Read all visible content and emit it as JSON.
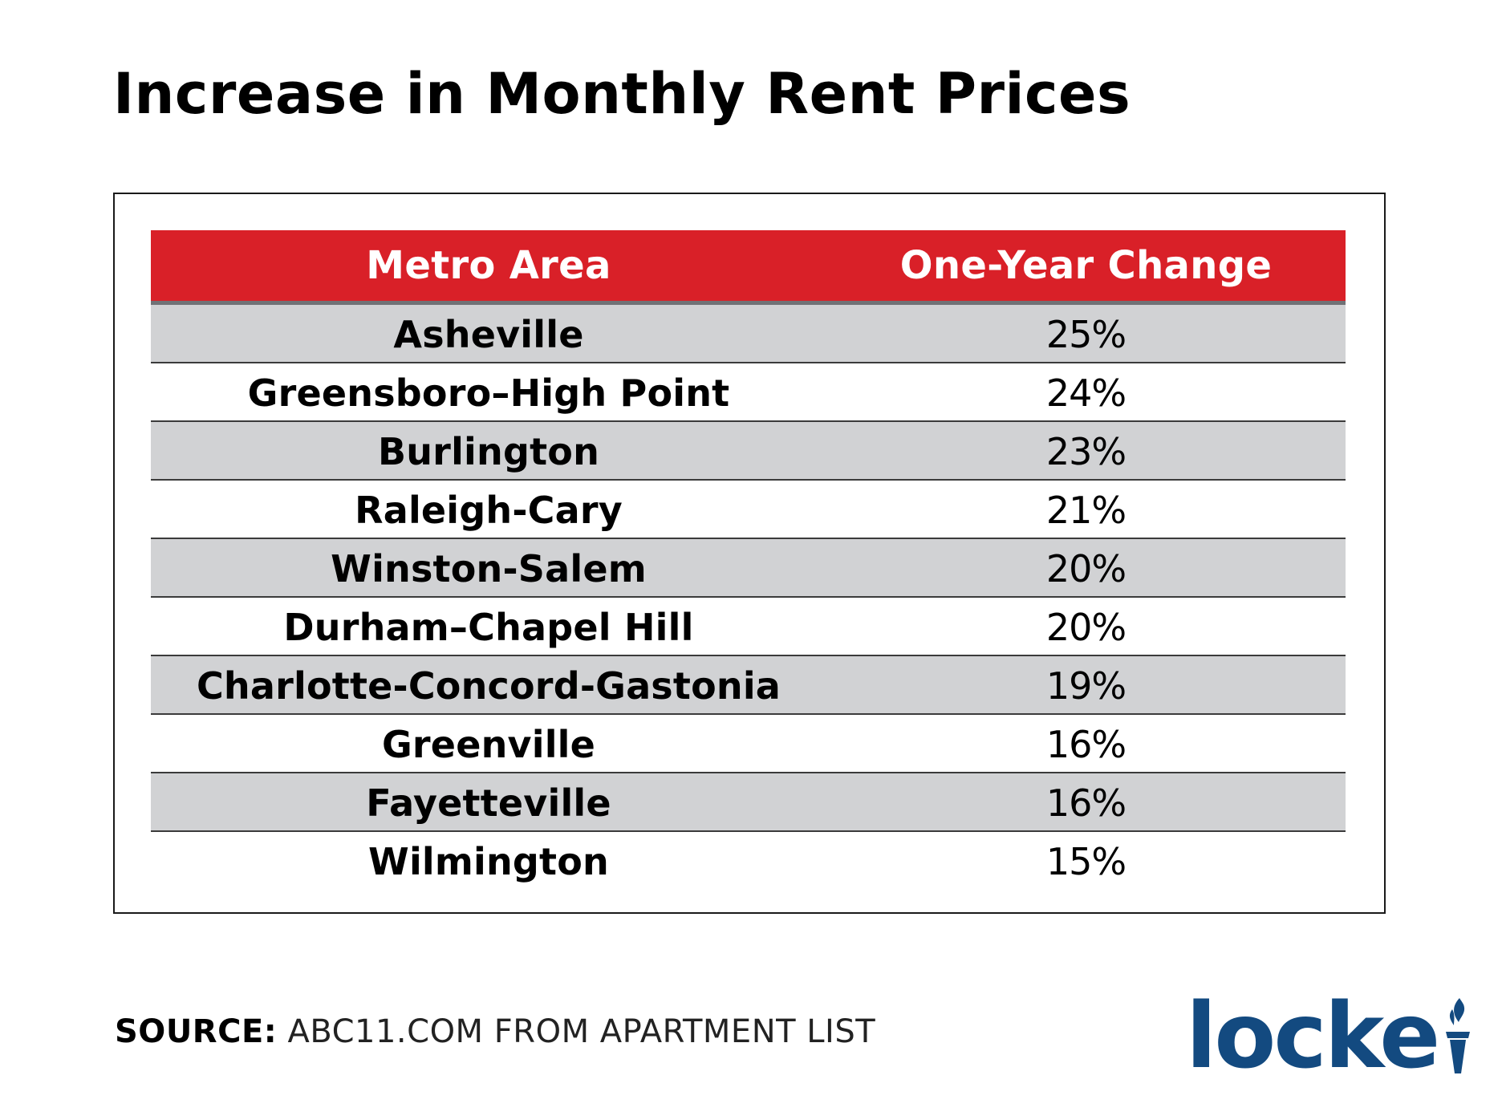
{
  "title": "Increase in Monthly Rent Prices",
  "chart_data": {
    "type": "table",
    "title": "Increase in Monthly Rent Prices",
    "columns": [
      "Metro Area",
      "One-Year Change"
    ],
    "rows": [
      {
        "metro": "Asheville",
        "change": "25%"
      },
      {
        "metro": "Greensboro–High Point",
        "change": "24%"
      },
      {
        "metro": "Burlington",
        "change": "23%"
      },
      {
        "metro": "Raleigh-Cary",
        "change": "21%"
      },
      {
        "metro": "Winston-Salem",
        "change": "20%"
      },
      {
        "metro": "Durham–Chapel Hill",
        "change": "20%"
      },
      {
        "metro": "Charlotte-Concord-Gastonia",
        "change": "19%"
      },
      {
        "metro": "Greenville",
        "change": "16%"
      },
      {
        "metro": "Fayetteville",
        "change": "16%"
      },
      {
        "metro": "Wilmington",
        "change": "15%"
      }
    ],
    "values_percent": [
      25,
      24,
      23,
      21,
      20,
      20,
      19,
      16,
      16,
      15
    ]
  },
  "source": {
    "label": "SOURCE:",
    "text": "ABC11.COM FROM APARTMENT LIST"
  },
  "logo": {
    "wordmark": "locke",
    "icon": "torch-icon"
  },
  "colors": {
    "header_red": "#D92028",
    "stripe_gray": "#D1D2D4",
    "brand_blue": "#134A80"
  }
}
